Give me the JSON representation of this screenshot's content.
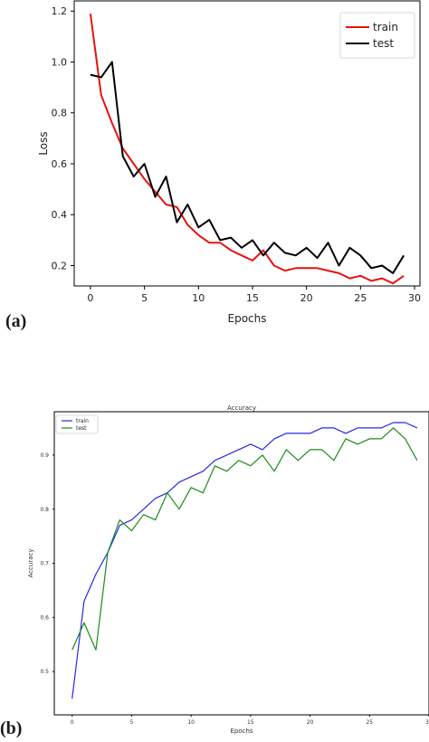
{
  "panel_labels": [
    "(a)",
    "(b)"
  ],
  "chart_data": [
    {
      "type": "line",
      "title": "",
      "xlabel": "Epochs",
      "ylabel": "Loss",
      "xlim": [
        -1.5,
        30.5
      ],
      "ylim": [
        0.12,
        1.24
      ],
      "xticks": [
        0,
        5,
        10,
        15,
        20,
        25,
        30
      ],
      "yticks": [
        0.2,
        0.4,
        0.6,
        0.8,
        1.0,
        1.2
      ],
      "ytick_labels": [
        "0.2",
        "0.4",
        "0.6",
        "0.8",
        "1.0",
        "1.2"
      ],
      "grid": false,
      "legend_position": "top-right",
      "x": [
        0,
        1,
        2,
        3,
        4,
        5,
        6,
        7,
        8,
        9,
        10,
        11,
        12,
        13,
        14,
        15,
        16,
        17,
        18,
        19,
        20,
        21,
        22,
        23,
        24,
        25,
        26,
        27,
        28,
        29
      ],
      "series": [
        {
          "name": "train",
          "color": "#e8120c",
          "values": [
            1.19,
            0.87,
            0.76,
            0.66,
            0.6,
            0.54,
            0.49,
            0.44,
            0.43,
            0.36,
            0.32,
            0.29,
            0.29,
            0.26,
            0.24,
            0.22,
            0.26,
            0.2,
            0.18,
            0.19,
            0.19,
            0.19,
            0.18,
            0.17,
            0.15,
            0.16,
            0.14,
            0.15,
            0.13,
            0.16
          ]
        },
        {
          "name": "test",
          "color": "#000000",
          "values": [
            0.95,
            0.94,
            1.0,
            0.63,
            0.55,
            0.6,
            0.47,
            0.55,
            0.37,
            0.44,
            0.35,
            0.38,
            0.3,
            0.31,
            0.27,
            0.3,
            0.24,
            0.29,
            0.25,
            0.24,
            0.27,
            0.23,
            0.29,
            0.2,
            0.27,
            0.24,
            0.19,
            0.2,
            0.17,
            0.24
          ]
        }
      ]
    },
    {
      "type": "line",
      "title": "Accuracy",
      "xlabel": "Epochs",
      "ylabel": "Accuracy",
      "xlim": [
        -1.5,
        30
      ],
      "ylim": [
        0.42,
        0.98
      ],
      "xticks": [
        0,
        5,
        10,
        15,
        20,
        25,
        30
      ],
      "yticks": [
        0.5,
        0.6,
        0.7,
        0.8,
        0.9
      ],
      "ytick_labels": [
        "0.5",
        "0.6",
        "0.7",
        "0.8",
        "0.9"
      ],
      "grid": false,
      "legend_position": "top-left",
      "x": [
        0,
        1,
        2,
        3,
        4,
        5,
        6,
        7,
        8,
        9,
        10,
        11,
        12,
        13,
        14,
        15,
        16,
        17,
        18,
        19,
        20,
        21,
        22,
        23,
        24,
        25,
        26,
        27,
        28,
        29
      ],
      "series": [
        {
          "name": "train",
          "color": "#2828e6",
          "values": [
            0.45,
            0.63,
            0.68,
            0.72,
            0.77,
            0.78,
            0.8,
            0.82,
            0.83,
            0.85,
            0.86,
            0.87,
            0.89,
            0.9,
            0.91,
            0.92,
            0.91,
            0.93,
            0.94,
            0.94,
            0.94,
            0.95,
            0.95,
            0.94,
            0.95,
            0.95,
            0.95,
            0.96,
            0.96,
            0.95
          ]
        },
        {
          "name": "test",
          "color": "#1a8c1a",
          "values": [
            0.54,
            0.59,
            0.54,
            0.72,
            0.78,
            0.76,
            0.79,
            0.78,
            0.83,
            0.8,
            0.84,
            0.83,
            0.88,
            0.87,
            0.89,
            0.88,
            0.9,
            0.87,
            0.91,
            0.89,
            0.91,
            0.91,
            0.89,
            0.93,
            0.92,
            0.93,
            0.93,
            0.95,
            0.93,
            0.89
          ]
        }
      ]
    }
  ]
}
